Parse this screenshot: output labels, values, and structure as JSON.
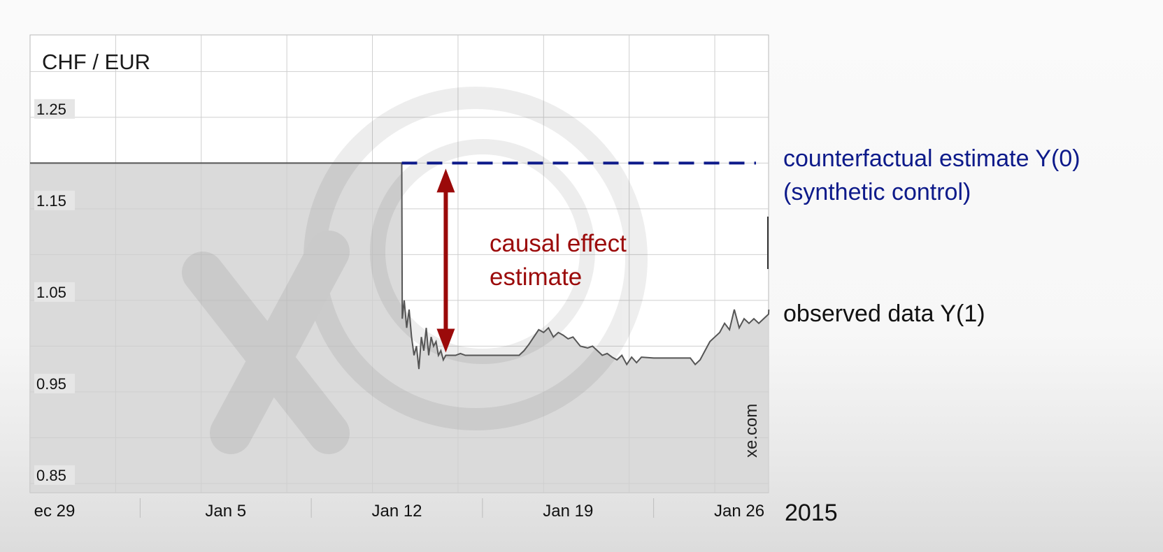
{
  "chart_data": {
    "type": "line",
    "title": "CHF / EUR",
    "watermark": "xe.com",
    "year_label": "2015",
    "x_axis": {
      "ticks": [
        "ec 29",
        "Jan 5",
        "Jan 12",
        "Jan 19",
        "Jan 26"
      ],
      "tick_days": [
        0,
        7,
        14,
        21,
        28
      ],
      "range_days": [
        -1.0,
        29.2
      ]
    },
    "y_axis": {
      "ticks": [
        "1.25",
        "1.15",
        "1.05",
        "0.95",
        "0.85"
      ],
      "tick_values": [
        1.25,
        1.15,
        1.05,
        0.95,
        0.85
      ],
      "range": [
        0.84,
        1.34
      ],
      "grid": true
    },
    "series": [
      {
        "name": "observed data",
        "label": "observed data Y(1)",
        "color": "#555555",
        "area_fill": true,
        "x_days": [
          -1.0,
          14.2,
          14.22,
          14.3,
          14.4,
          14.5,
          14.6,
          14.7,
          14.8,
          14.9,
          15.0,
          15.1,
          15.2,
          15.3,
          15.4,
          15.5,
          15.6,
          15.7,
          15.8,
          15.9,
          16.0,
          16.2,
          16.4,
          16.6,
          16.8,
          17.0,
          17.5,
          18.0,
          18.5,
          19.0,
          19.2,
          19.4,
          19.6,
          19.8,
          20.0,
          20.2,
          20.4,
          20.6,
          20.8,
          21.0,
          21.2,
          21.5,
          21.8,
          22.0,
          22.2,
          22.4,
          22.6,
          22.8,
          23.0,
          23.2,
          23.4,
          23.6,
          23.8,
          24.0,
          24.5,
          25.0,
          25.5,
          26.0,
          26.2,
          26.4,
          26.6,
          26.8,
          27.0,
          27.2,
          27.4,
          27.6,
          27.8,
          28.0,
          28.2,
          28.4,
          28.6,
          28.8,
          29.0,
          29.2,
          29.21
        ],
        "y": [
          1.2,
          1.2,
          1.03,
          1.05,
          1.02,
          1.04,
          1.01,
          0.99,
          1.0,
          0.975,
          1.01,
          0.995,
          1.02,
          0.99,
          1.01,
          1.0,
          1.005,
          0.99,
          0.995,
          0.985,
          0.99,
          0.99,
          0.99,
          0.992,
          0.99,
          0.99,
          0.99,
          0.99,
          0.99,
          0.99,
          0.995,
          1.002,
          1.01,
          1.018,
          1.015,
          1.02,
          1.01,
          1.015,
          1.012,
          1.008,
          1.01,
          1.0,
          0.998,
          1.0,
          0.995,
          0.99,
          0.992,
          0.988,
          0.985,
          0.99,
          0.98,
          0.988,
          0.982,
          0.988,
          0.987,
          0.987,
          0.987,
          0.987,
          0.98,
          0.985,
          0.995,
          1.005,
          1.01,
          1.015,
          1.025,
          1.018,
          1.04,
          1.02,
          1.03,
          1.025,
          1.03,
          1.025,
          1.03,
          1.035,
          1.04
        ]
      },
      {
        "name": "counterfactual estimate",
        "label_line1": "counterfactual estimate Y(0)",
        "label_line2": "(synthetic control)",
        "color": "#0d1a8a",
        "dashed": true,
        "x_days": [
          14.2,
          29.2
        ],
        "y": [
          1.2,
          1.2
        ]
      }
    ],
    "annotations": [
      {
        "text_line1": "causal effect",
        "text_line2": "estimate",
        "color": "#9b0a0a",
        "arrow_x_day": 16.0,
        "from_y": 0.99,
        "to_y": 1.2
      }
    ]
  }
}
